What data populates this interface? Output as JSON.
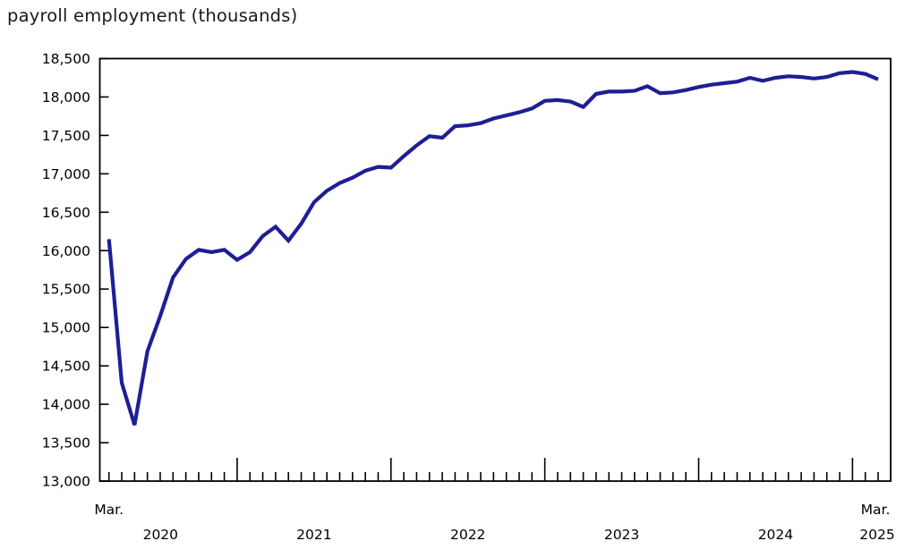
{
  "page": {
    "background": "#ffffff"
  },
  "chart_data": {
    "type": "line",
    "title": "payroll employment (thousands)",
    "series_name": "payroll employment",
    "x": [
      "2020-03",
      "2020-04",
      "2020-05",
      "2020-06",
      "2020-07",
      "2020-08",
      "2020-09",
      "2020-10",
      "2020-11",
      "2020-12",
      "2021-01",
      "2021-02",
      "2021-03",
      "2021-04",
      "2021-05",
      "2021-06",
      "2021-07",
      "2021-08",
      "2021-09",
      "2021-10",
      "2021-11",
      "2021-12",
      "2022-01",
      "2022-02",
      "2022-03",
      "2022-04",
      "2022-05",
      "2022-06",
      "2022-07",
      "2022-08",
      "2022-09",
      "2022-10",
      "2022-11",
      "2022-12",
      "2023-01",
      "2023-02",
      "2023-03",
      "2023-04",
      "2023-05",
      "2023-06",
      "2023-07",
      "2023-08",
      "2023-09",
      "2023-10",
      "2023-11",
      "2023-12",
      "2024-01",
      "2024-02",
      "2024-03",
      "2024-04",
      "2024-05",
      "2024-06",
      "2024-07",
      "2024-08",
      "2024-09",
      "2024-10",
      "2024-11",
      "2024-12",
      "2025-01",
      "2025-02",
      "2025-03"
    ],
    "values": [
      16150,
      14280,
      13730,
      14690,
      15150,
      15650,
      15890,
      16010,
      15980,
      16010,
      15880,
      15980,
      16190,
      16310,
      16130,
      16350,
      16630,
      16780,
      16880,
      16950,
      17040,
      17090,
      17080,
      17230,
      17370,
      17490,
      17470,
      17620,
      17630,
      17660,
      17720,
      17760,
      17800,
      17850,
      17950,
      17960,
      17940,
      17870,
      18040,
      18070,
      18070,
      18080,
      18140,
      18050,
      18060,
      18090,
      18130,
      18160,
      18180,
      18200,
      18250,
      18210,
      18250,
      18270,
      18260,
      18240,
      18260,
      18310,
      18325,
      18300,
      18230
    ],
    "ylim": [
      13000,
      18500
    ],
    "y_tick_step": 500,
    "y_tick_labels": [
      "18,500",
      "18,000",
      "17,500",
      "17,000",
      "16,500",
      "16,000",
      "15,500",
      "15,000",
      "14,500",
      "14,000",
      "13,500",
      "13,000"
    ],
    "x_axis": {
      "first_point_label": "Mar.",
      "last_point_label": "Mar.",
      "year_labels": [
        "2020",
        "2021",
        "2022",
        "2023",
        "2024",
        "2025"
      ]
    },
    "line_color": "#1e1e96",
    "axis_color": "#000000",
    "grid": false,
    "legend": "none"
  }
}
